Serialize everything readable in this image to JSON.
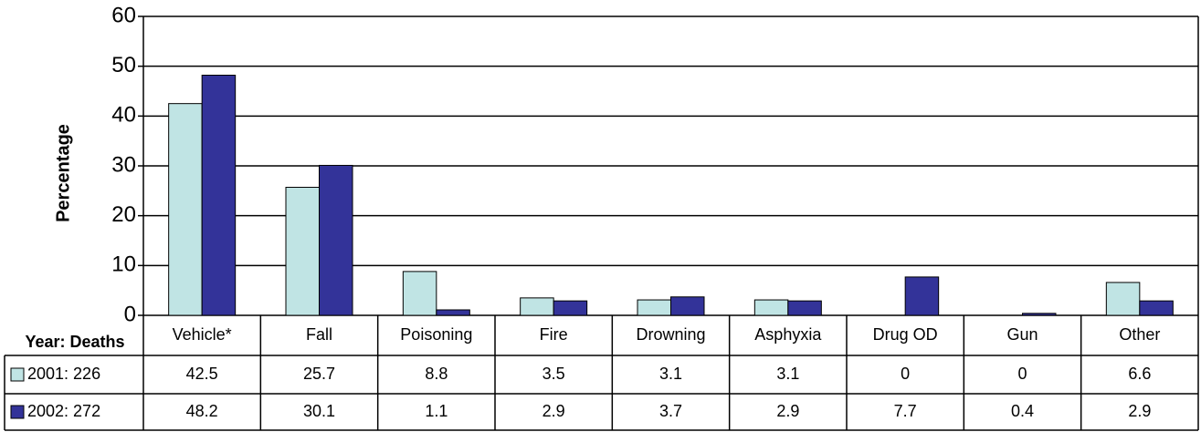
{
  "chart_data": {
    "type": "bar",
    "y_label": "Percentage",
    "table_header": "Year: Deaths",
    "categories": [
      "Vehicle*",
      "Fall",
      "Poisoning",
      "Fire",
      "Drowning",
      "Asphyxia",
      "Drug OD",
      "Gun",
      "Other"
    ],
    "series": [
      {
        "name": "2001: 226",
        "color": "#c0e4e4",
        "values": [
          42.5,
          25.7,
          8.8,
          3.5,
          3.1,
          3.1,
          0,
          0,
          6.6
        ]
      },
      {
        "name": "2002: 272",
        "color": "#333399",
        "values": [
          48.2,
          30.1,
          1.1,
          2.9,
          3.7,
          2.9,
          7.7,
          0.4,
          2.9
        ]
      }
    ],
    "ylim": [
      0,
      60
    ],
    "yticks": [
      0,
      10,
      20,
      30,
      40,
      50,
      60
    ],
    "grid": true
  }
}
